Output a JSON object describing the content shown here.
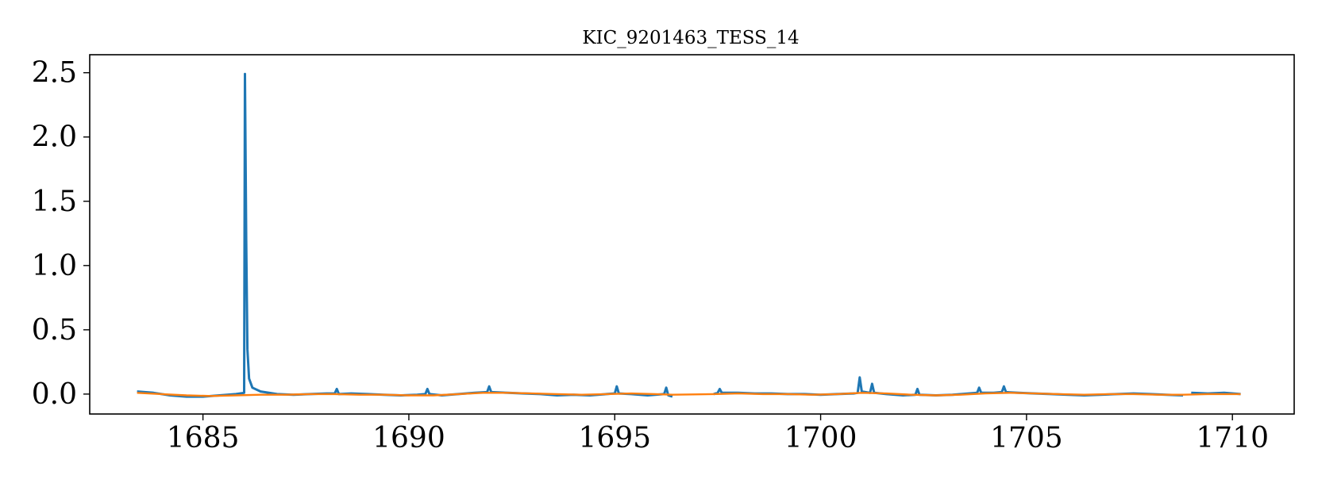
{
  "chart_data": {
    "type": "line",
    "title": "KIC_9201463_TESS_14",
    "xlabel": "",
    "ylabel": "",
    "xlim": [
      1682.25,
      1711.5
    ],
    "ylim": [
      -0.155,
      2.64
    ],
    "x_ticks": [
      1685,
      1690,
      1695,
      1700,
      1705,
      1710
    ],
    "x_tick_labels": [
      "1685",
      "1690",
      "1695",
      "1700",
      "1705",
      "1710"
    ],
    "y_ticks": [
      0.0,
      0.5,
      1.0,
      1.5,
      2.0,
      2.5
    ],
    "y_tick_labels": [
      "0.0",
      "0.5",
      "1.0",
      "1.5",
      "2.0",
      "2.5"
    ],
    "grid": false,
    "series": [
      {
        "color": "#1f77b4",
        "segments": [
          {
            "x": [
              1683.4,
              1683.8,
              1684.2,
              1684.6,
              1685.0,
              1685.4,
              1685.8,
              1686.0,
              1686.02,
              1686.05,
              1686.08,
              1686.12,
              1686.2,
              1686.4,
              1686.8,
              1687.2,
              1687.6,
              1688.0,
              1688.2,
              1688.25,
              1688.3,
              1688.6,
              1689.0,
              1689.4,
              1689.8,
              1690.2,
              1690.4,
              1690.45,
              1690.5,
              1690.8,
              1691.2,
              1691.6,
              1691.9,
              1691.95,
              1692.0,
              1692.4,
              1692.8,
              1693.2,
              1693.6,
              1694.0,
              1694.4,
              1694.8,
              1695.0,
              1695.05,
              1695.1,
              1695.4,
              1695.8,
              1696.2,
              1696.25,
              1696.3,
              1696.4
            ],
            "y": [
              0.02,
              0.01,
              -0.01,
              -0.02,
              -0.02,
              -0.01,
              0.0,
              0.01,
              2.49,
              1.2,
              0.35,
              0.12,
              0.05,
              0.02,
              0.0,
              -0.005,
              0.0,
              0.005,
              0.005,
              0.04,
              0.0,
              0.005,
              0.0,
              -0.005,
              -0.01,
              -0.005,
              0.0,
              0.04,
              0.0,
              -0.01,
              0.0,
              0.01,
              0.015,
              0.06,
              0.015,
              0.01,
              0.005,
              0.0,
              -0.01,
              -0.005,
              -0.01,
              0.0,
              0.005,
              0.06,
              0.005,
              0.0,
              -0.01,
              0.0,
              0.05,
              -0.01,
              -0.02
            ]
          },
          {
            "x": [
              1697.4,
              1697.5,
              1697.55,
              1697.6,
              1698.0,
              1698.4,
              1698.8,
              1699.2,
              1699.6,
              1700.0,
              1700.4,
              1700.8,
              1700.9,
              1700.95,
              1701.0,
              1701.2,
              1701.25,
              1701.3,
              1701.6,
              1702.0,
              1702.3,
              1702.35,
              1702.4,
              1702.8,
              1703.2,
              1703.6,
              1703.8,
              1703.85,
              1703.9,
              1704.2,
              1704.4,
              1704.45,
              1704.5,
              1704.8,
              1705.2,
              1705.6,
              1706.0,
              1706.4,
              1706.8,
              1707.2,
              1707.6,
              1708.0,
              1708.4,
              1708.8
            ],
            "y": [
              0.0,
              0.01,
              0.04,
              0.01,
              0.01,
              0.005,
              0.005,
              0.0,
              0.0,
              -0.005,
              0.0,
              0.005,
              0.01,
              0.13,
              0.02,
              0.01,
              0.08,
              0.01,
              0.0,
              -0.01,
              -0.005,
              0.04,
              -0.005,
              -0.01,
              -0.005,
              0.005,
              0.01,
              0.05,
              0.01,
              0.01,
              0.015,
              0.06,
              0.015,
              0.01,
              0.005,
              0.0,
              -0.005,
              -0.01,
              -0.005,
              0.0,
              0.005,
              0.0,
              -0.005,
              -0.01
            ]
          },
          {
            "x": [
              1709.0,
              1709.4,
              1709.8,
              1710.2
            ],
            "y": [
              0.01,
              0.005,
              0.01,
              0.0
            ]
          }
        ]
      },
      {
        "color": "#ff7f0e",
        "segments": [
          {
            "x": [
              1683.4,
              1684.0,
              1684.6,
              1685.2,
              1685.8,
              1686.4,
              1687.0,
              1687.6,
              1688.2,
              1688.8,
              1689.4,
              1690.0,
              1690.6,
              1691.2,
              1691.8,
              1692.4,
              1693.0,
              1693.6,
              1694.2,
              1694.8,
              1695.4,
              1696.0,
              1696.4,
              1697.4,
              1698.0,
              1698.6,
              1699.2,
              1699.8,
              1700.4,
              1701.0,
              1701.6,
              1702.2,
              1702.8,
              1703.4,
              1704.0,
              1704.6,
              1705.2,
              1705.8,
              1706.4,
              1707.0,
              1707.6,
              1708.2,
              1708.8,
              1709.4,
              1710.2
            ],
            "y": [
              0.01,
              0.0,
              -0.01,
              -0.015,
              -0.01,
              -0.005,
              -0.005,
              0.0,
              0.0,
              -0.005,
              -0.005,
              -0.01,
              -0.01,
              0.0,
              0.01,
              0.01,
              0.005,
              0.0,
              -0.005,
              0.0,
              0.005,
              0.0,
              -0.005,
              0.0,
              0.005,
              0.0,
              0.0,
              -0.005,
              0.0,
              0.01,
              0.005,
              -0.005,
              -0.01,
              -0.005,
              0.005,
              0.01,
              0.005,
              0.0,
              -0.005,
              0.0,
              0.0,
              -0.005,
              -0.005,
              0.0,
              0.0
            ]
          }
        ]
      }
    ]
  }
}
